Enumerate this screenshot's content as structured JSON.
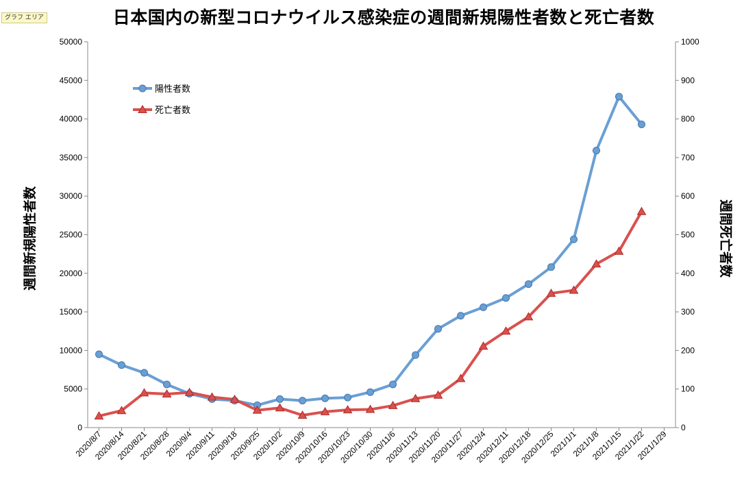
{
  "area_tag": "グラフ エリア",
  "chart_data": {
    "type": "line",
    "title": "日本国内の新型コロナウイルス感染症の週間新規陽性者数と死亡者数",
    "ylabel_left": "週間新規陽性者数",
    "ylabel_right": "週間死亡者数",
    "ylim_left": [
      0,
      50000
    ],
    "ylim_right": [
      0,
      1000
    ],
    "yticks_left": [
      "0",
      "5000",
      "10000",
      "15000",
      "20000",
      "25000",
      "30000",
      "35000",
      "40000",
      "45000",
      "50000"
    ],
    "yticks_right": [
      "0",
      "100",
      "200",
      "300",
      "400",
      "500",
      "600",
      "700",
      "800",
      "900",
      "1000"
    ],
    "legend_position": "top-left",
    "categories": [
      "2020/8/7",
      "2020/8/14",
      "2020/8/21",
      "2020/8/28",
      "2020/9/4",
      "2020/9/11",
      "2020/9/18",
      "2020/9/25",
      "2020/10/2",
      "2020/10/9",
      "2020/10/16",
      "2020/10/23",
      "2020/10/30",
      "2020/11/6",
      "2020/11/13",
      "2020/11/20",
      "2020/11/27",
      "2020/12/4",
      "2020/12/11",
      "2020/12/18",
      "2020/12/25",
      "2021/1/1",
      "2021/1/8",
      "2021/1/15",
      "2021/1/22",
      "2021/1/29"
    ],
    "series": [
      {
        "name": "陽性者数",
        "axis": "left",
        "color": "#6a9fd4",
        "marker": "circle",
        "values": [
          9500,
          8100,
          7100,
          5600,
          4400,
          3700,
          3500,
          2900,
          3700,
          3500,
          3800,
          3900,
          4600,
          5600,
          9400,
          12800,
          14500,
          15600,
          16800,
          18600,
          20800,
          24400,
          35900,
          42900,
          39300,
          null
        ]
      },
      {
        "name": "死亡者数",
        "axis": "right",
        "color": "#d9514e",
        "marker": "triangle",
        "values": [
          30,
          44,
          90,
          87,
          91,
          79,
          73,
          45,
          51,
          32,
          41,
          46,
          47,
          57,
          75,
          84,
          127,
          211,
          250,
          287,
          348,
          356,
          424,
          457,
          560,
          null
        ]
      }
    ]
  }
}
